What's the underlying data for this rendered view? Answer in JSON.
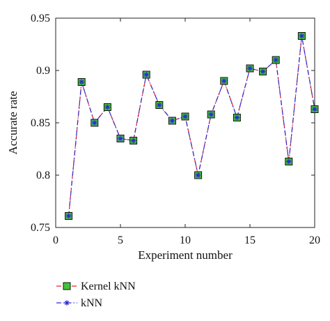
{
  "chart_data": {
    "type": "line",
    "xlabel": "Experiment number",
    "ylabel": "Accurate rate",
    "xlim": [
      0,
      20
    ],
    "ylim": [
      0.75,
      0.95
    ],
    "x_ticks": [
      0,
      5,
      10,
      15,
      20
    ],
    "x_tick_labels": [
      "0",
      "5",
      "10",
      "15",
      "20"
    ],
    "y_ticks": [
      0.75,
      0.8,
      0.85,
      0.9,
      0.95
    ],
    "y_tick_labels": [
      "0.75",
      "0.8",
      "0.85",
      "0.9",
      "0.95"
    ],
    "grid": false,
    "legend_position": "bottom-left",
    "x": [
      1,
      2,
      3,
      4,
      5,
      6,
      7,
      8,
      9,
      10,
      11,
      12,
      13,
      14,
      15,
      16,
      17,
      18,
      19,
      20
    ],
    "series": [
      {
        "name": "Kernel kNN",
        "color": "#e8251f",
        "marker": "square",
        "marker_fill": "#43c33a",
        "line_style": "dashed",
        "values": [
          0.761,
          0.889,
          0.85,
          0.865,
          0.835,
          0.833,
          0.896,
          0.867,
          0.852,
          0.856,
          0.8,
          0.858,
          0.89,
          0.855,
          0.902,
          0.899,
          0.91,
          0.813,
          0.933,
          0.863
        ]
      },
      {
        "name": "kNN",
        "color": "#2a2ad8",
        "marker": "asterisk",
        "line_style": "dashdot",
        "values": [
          0.761,
          0.889,
          0.85,
          0.865,
          0.835,
          0.833,
          0.896,
          0.867,
          0.852,
          0.856,
          0.8,
          0.858,
          0.89,
          0.855,
          0.902,
          0.899,
          0.91,
          0.813,
          0.933,
          0.863
        ]
      }
    ]
  }
}
